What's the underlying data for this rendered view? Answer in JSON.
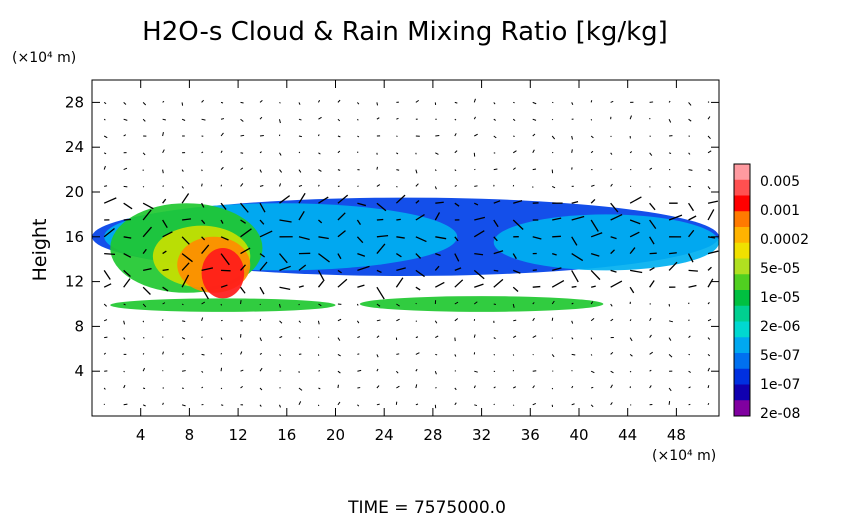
{
  "chart_data": {
    "type": "heatmap",
    "title": "H2O-s Cloud & Rain Mixing Ratio [kg/kg]",
    "ylabel": "Height",
    "y_unit": "(×10⁴ m)",
    "x_unit": "(×10⁴ m)",
    "xlim": [
      0,
      51.5
    ],
    "ylim": [
      0,
      30
    ],
    "x_ticks": [
      4,
      8,
      12,
      16,
      20,
      24,
      28,
      32,
      36,
      40,
      44,
      48
    ],
    "y_ticks": [
      4,
      8,
      12,
      16,
      20,
      24,
      28
    ],
    "colorbar": {
      "labels": [
        "0.005",
        "0.001",
        "0.0002",
        "5e-05",
        "1e-05",
        "2e-06",
        "5e-07",
        "1e-07",
        "2e-08"
      ],
      "colors": [
        "#ff9aa0",
        "#ff5050",
        "#ff0000",
        "#ff7a00",
        "#ffb300",
        "#f0e000",
        "#b0e020",
        "#50d020",
        "#00c040",
        "#00d090",
        "#00d8d0",
        "#00a8f0",
        "#0070f0",
        "#0030e0",
        "#1000b0",
        "#8000a0"
      ]
    },
    "regions": [
      {
        "level": "1e-07",
        "x": [
          0,
          51.5
        ],
        "y": [
          12.5,
          19.5
        ]
      },
      {
        "level": "5e-07",
        "x": [
          1,
          30
        ],
        "y": [
          13,
          19
        ]
      },
      {
        "level": "5e-07",
        "x": [
          33,
          51.5
        ],
        "y": [
          13,
          18
        ]
      },
      {
        "level": "1e-05",
        "x": [
          1.5,
          14
        ],
        "y": [
          11,
          19
        ]
      },
      {
        "level": "5e-05",
        "x": [
          5,
          13
        ],
        "y": [
          11.5,
          17
        ]
      },
      {
        "level": "0.0002",
        "x": [
          7,
          13
        ],
        "y": [
          11,
          16
        ]
      },
      {
        "level": "0.001",
        "x": [
          9,
          12.5
        ],
        "y": [
          10.5,
          15
        ]
      },
      {
        "level": "1e-05",
        "x": [
          1.5,
          20
        ],
        "y": [
          9.3,
          10.5
        ]
      },
      {
        "level": "1e-05",
        "x": [
          22,
          42
        ],
        "y": [
          9.3,
          10.7
        ]
      }
    ],
    "grid": false,
    "vectors": true,
    "legend": "right"
  },
  "footer": {
    "time": "TIME  =  7575000.0"
  }
}
